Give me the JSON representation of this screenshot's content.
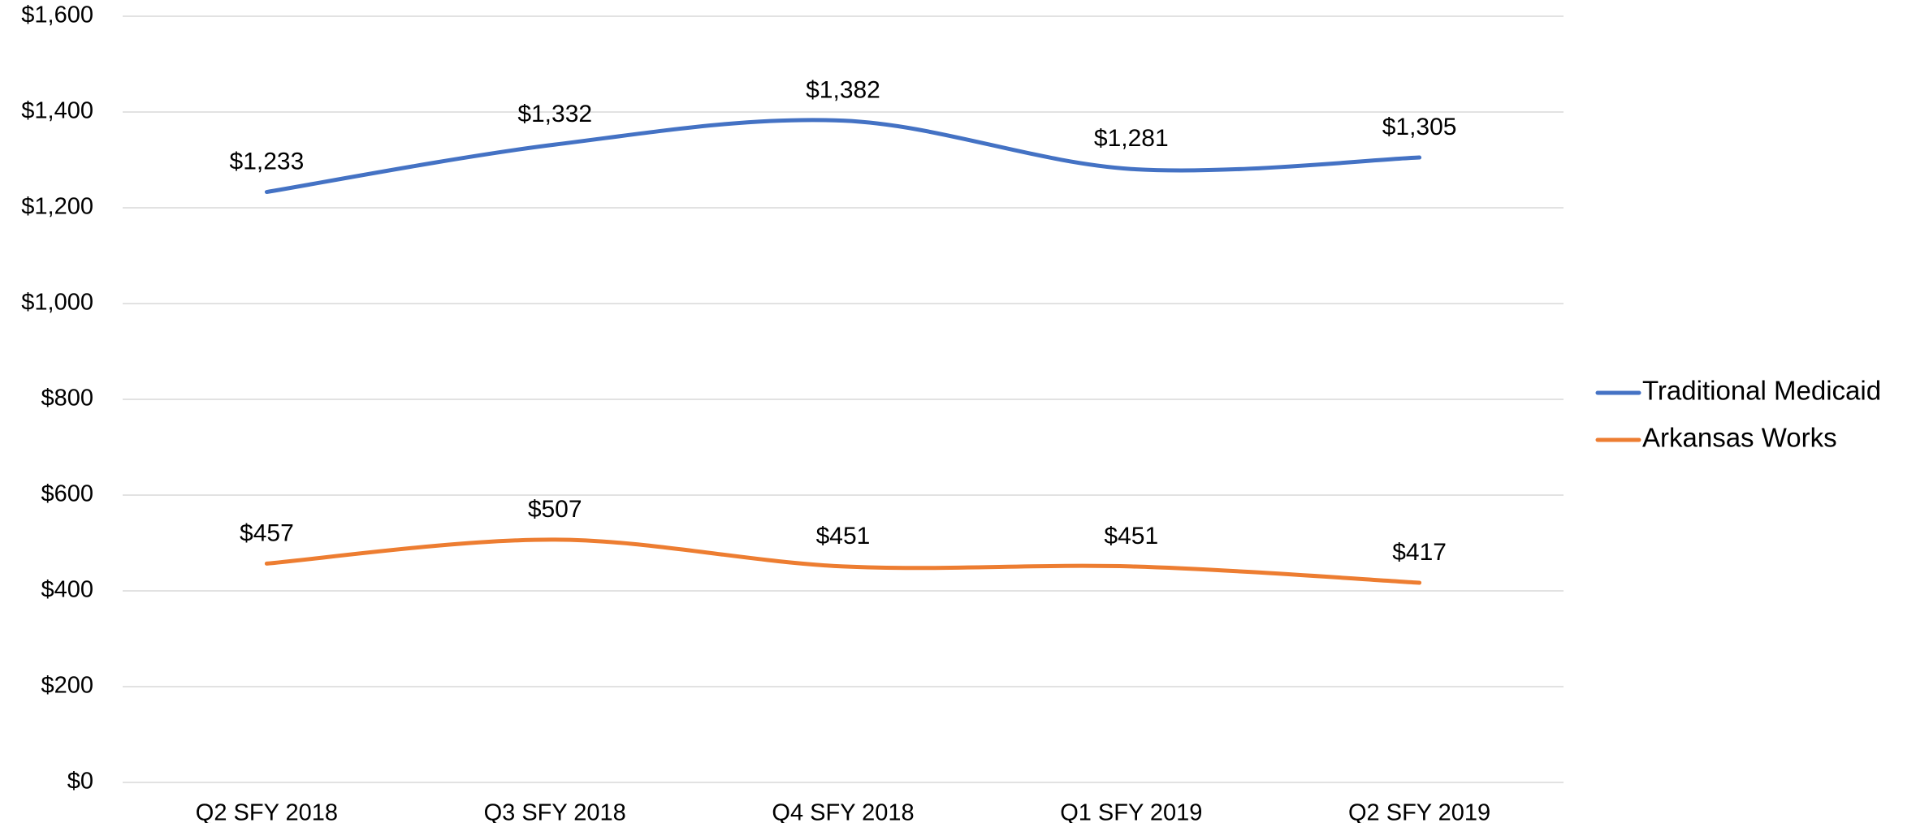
{
  "chart_data": {
    "type": "line",
    "categories": [
      "Q2 SFY 2018",
      "Q3 SFY 2018",
      "Q4 SFY 2018",
      "Q1 SFY 2019",
      "Q2 SFY 2019"
    ],
    "series": [
      {
        "name": "Traditional Medicaid",
        "color": "#4472c4",
        "values": [
          1233,
          1332,
          1382,
          1281,
          1305
        ],
        "value_labels": [
          "$1,233",
          "$1,332",
          "$1,382",
          "$1,281",
          "$1,305"
        ]
      },
      {
        "name": "Arkansas Works",
        "color": "#ed7d31",
        "values": [
          457,
          507,
          451,
          451,
          417
        ],
        "value_labels": [
          "$457",
          "$507",
          "$451",
          "$451",
          "$417"
        ]
      }
    ],
    "ylim": [
      0,
      1600
    ],
    "yticks": [
      {
        "value": 0,
        "label": "$0"
      },
      {
        "value": 200,
        "label": "$200"
      },
      {
        "value": 400,
        "label": "$400"
      },
      {
        "value": 600,
        "label": "$600"
      },
      {
        "value": 800,
        "label": "$800"
      },
      {
        "value": 1000,
        "label": "$1,000"
      },
      {
        "value": 1200,
        "label": "$1,200"
      },
      {
        "value": 1400,
        "label": "$1,400"
      },
      {
        "value": 1600,
        "label": "$1,600"
      }
    ],
    "grid": true,
    "smooth": true,
    "legend": "right"
  }
}
